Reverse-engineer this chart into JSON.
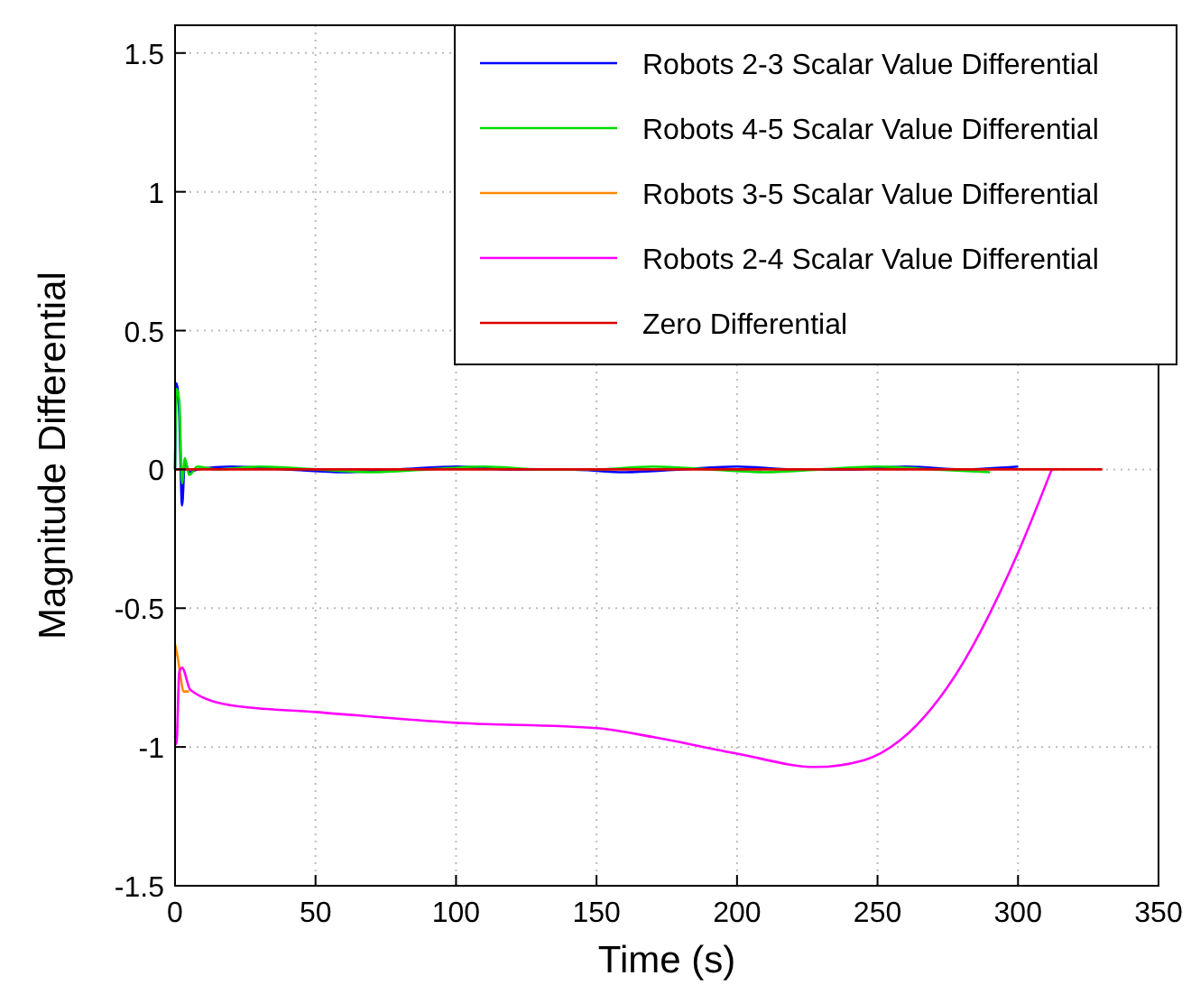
{
  "chart_data": {
    "type": "line",
    "xlabel": "Time (s)",
    "ylabel": "Magnitude Differential",
    "xlim": [
      0,
      350
    ],
    "ylim": [
      -1.5,
      1.6
    ],
    "xticks": [
      0,
      50,
      100,
      150,
      200,
      250,
      300,
      350
    ],
    "yticks": [
      -1.5,
      -1,
      -0.5,
      0,
      0.5,
      1,
      1.5
    ],
    "grid": true,
    "legend": "top right",
    "marker": "none",
    "line_style": "solid",
    "series": [
      {
        "name": "Robots 2-3 Scalar Value Differential",
        "color": "#0000ff",
        "x": [
          0,
          0.5,
          1.5,
          2.5,
          3.5,
          5,
          8,
          20,
          40,
          60,
          80,
          100,
          120,
          140,
          160,
          180,
          200,
          220,
          240,
          260,
          280,
          300
        ],
        "values": [
          0,
          0.31,
          0.2,
          -0.13,
          0.03,
          -0.01,
          0,
          0.01,
          0,
          -0.01,
          0,
          0.01,
          0,
          0,
          -0.01,
          0,
          0.01,
          0,
          0,
          0.01,
          0,
          0.01
        ]
      },
      {
        "name": "Robots 4-5 Scalar Value Differential",
        "color": "#00dd00",
        "x": [
          0,
          0.5,
          1.5,
          2.5,
          3.5,
          5,
          8,
          15,
          30,
          50,
          70,
          90,
          110,
          130,
          150,
          170,
          190,
          210,
          230,
          250,
          270,
          290
        ],
        "values": [
          0,
          0.29,
          0.25,
          -0.05,
          0.04,
          -0.02,
          0.01,
          0,
          0.01,
          0,
          -0.01,
          0,
          0.01,
          0,
          0,
          0.01,
          0,
          -0.01,
          0,
          0.01,
          0,
          -0.01
        ]
      },
      {
        "name": "Robots 3-5 Scalar Value Differential",
        "color": "#ff8800",
        "x": [
          0,
          1,
          2,
          3,
          5
        ],
        "values": [
          -0.63,
          -0.68,
          -0.75,
          -0.8,
          -0.8
        ]
      },
      {
        "name": "Robots 2-4 Scalar Value Differential",
        "color": "#ff00ff",
        "x": [
          0,
          0.5,
          1.5,
          2.5,
          5.5,
          20,
          50,
          100,
          150,
          170,
          200,
          228,
          245,
          258,
          275,
          300,
          312
        ],
        "values": [
          -0.96,
          -0.99,
          -0.73,
          -0.715,
          -0.795,
          -0.85,
          -0.874,
          -0.913,
          -0.932,
          -0.964,
          -1.024,
          -1.072,
          -1.048,
          -0.976,
          -0.783,
          -0.3,
          0
        ]
      },
      {
        "name": "Zero Differential",
        "color": "#dd0000",
        "x": [
          0,
          330
        ],
        "values": [
          0,
          0
        ]
      }
    ]
  }
}
